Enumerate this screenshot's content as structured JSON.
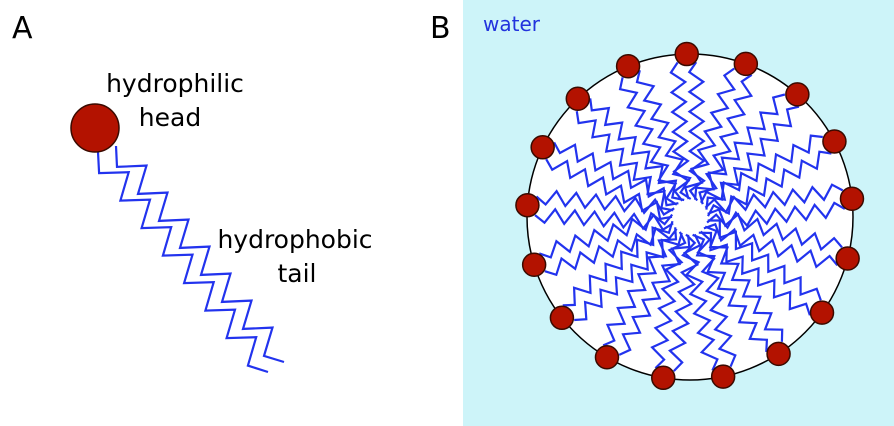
{
  "panel_a": {
    "label": "A",
    "head_label": {
      "line1": "hydrophilic",
      "line2": "head"
    },
    "tail_label": {
      "line1": "hydrophobic",
      "line2": "tail"
    }
  },
  "panel_b": {
    "label": "B",
    "medium_label": "water"
  }
}
